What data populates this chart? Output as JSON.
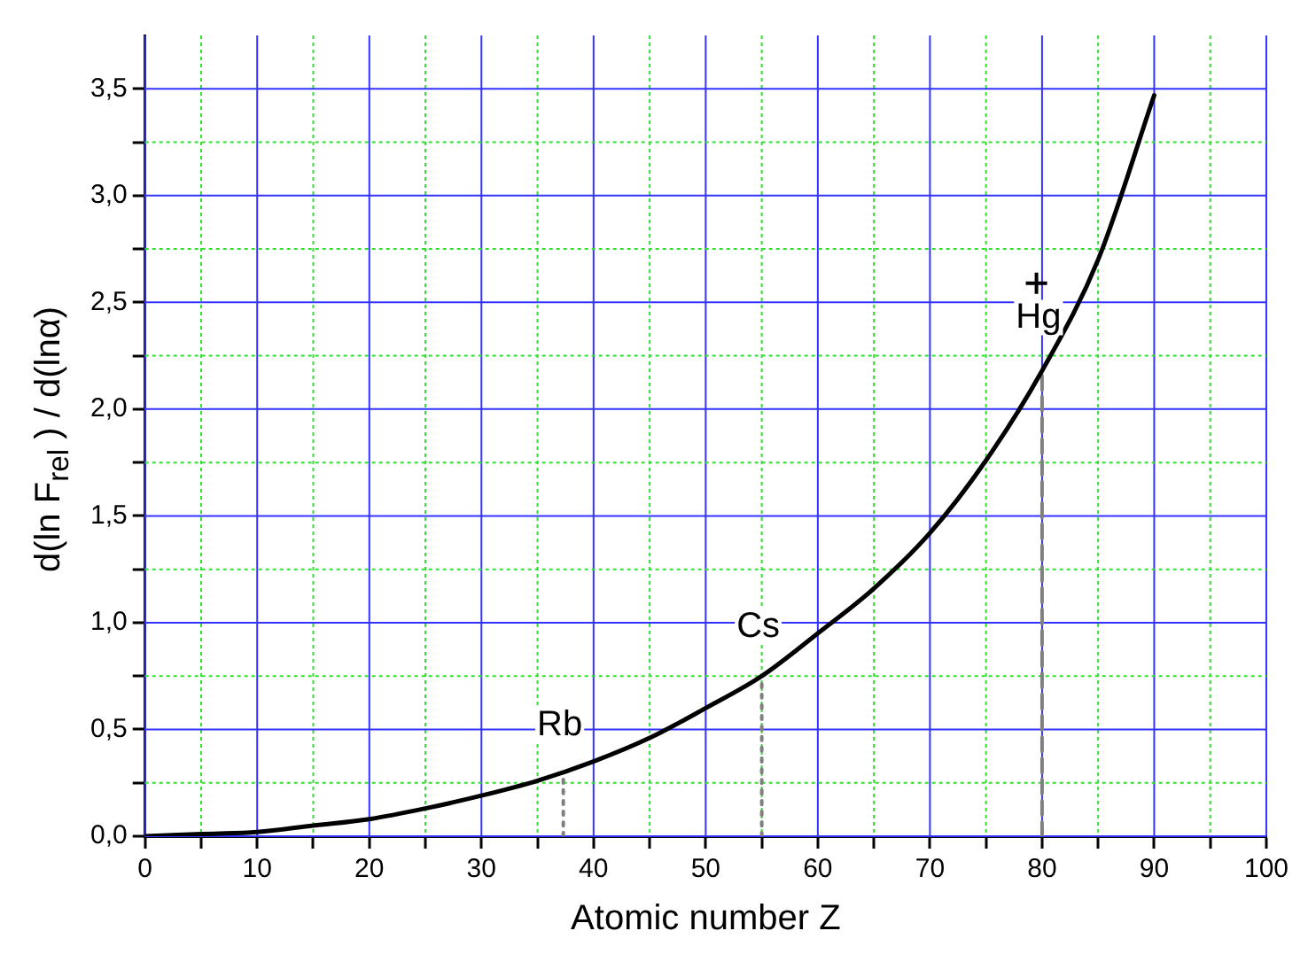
{
  "chart_data": {
    "type": "line",
    "xlabel": "Atomic number Z",
    "ylabel": "d(ln F$_{rel}$ ) / d(lnα)",
    "xlim": [
      0,
      100
    ],
    "ylim": [
      0,
      3.75
    ],
    "xticks": [
      0,
      {
        "value": 5,
        "label": null
      },
      10,
      {
        "value": 15,
        "label": null
      },
      20,
      {
        "value": 25,
        "label": null
      },
      30,
      {
        "value": 35,
        "label": null
      },
      40,
      {
        "value": 45,
        "label": null
      },
      50,
      {
        "value": 55,
        "label": null
      },
      60,
      {
        "value": 65,
        "label": null
      },
      70,
      {
        "value": 75,
        "label": null
      },
      80,
      {
        "value": 85,
        "label": null
      },
      90,
      {
        "value": 95,
        "label": null
      },
      100
    ],
    "yticks": [
      {
        "value": 0,
        "label": "0,0"
      },
      {
        "value": 0.25,
        "label": null
      },
      {
        "value": 0.5,
        "label": "0,5"
      },
      {
        "value": 0.75,
        "label": null
      },
      {
        "value": 1,
        "label": "1,0"
      },
      {
        "value": 1.25,
        "label": null
      },
      {
        "value": 1.5,
        "label": "1,5"
      },
      {
        "value": 1.75,
        "label": null
      },
      {
        "value": 2,
        "label": "2,0"
      },
      {
        "value": 2.25,
        "label": null
      },
      {
        "value": 2.5,
        "label": "2,5"
      },
      {
        "value": 2.75,
        "label": null
      },
      {
        "value": 3,
        "label": "3,0"
      },
      {
        "value": 3.25,
        "label": null
      },
      {
        "value": 3.5,
        "label": "3,5"
      }
    ],
    "grid": true,
    "marker": "none",
    "line_style": "solid",
    "series": [
      {
        "color": "#000000",
        "x": [
          0,
          5,
          10,
          15,
          20,
          25,
          30,
          35,
          40,
          45,
          50,
          55,
          60,
          65,
          70,
          75,
          80,
          85,
          90
        ],
        "values": [
          0,
          0.01,
          0.02,
          0.05,
          0.08,
          0.13,
          0.19,
          0.26,
          0.35,
          0.46,
          0.6,
          0.75,
          0.95,
          1.16,
          1.42,
          1.76,
          2.18,
          2.7,
          3.47
        ]
      },
      {
        "color": "#808080",
        "line_style": "dotted",
        "x": [
          37.3,
          37.3
        ],
        "values": [
          0,
          0.27
        ]
      },
      {
        "color": "#808080",
        "line_style": "dotted",
        "x": [
          55,
          55
        ],
        "values": [
          0,
          0.73
        ]
      },
      {
        "color": "#808080",
        "line_style": "dashed",
        "x": [
          80,
          80
        ],
        "values": [
          0,
          2.18
        ]
      },
      {
        "type": "scatter",
        "color": "#000000",
        "marker": "cross",
        "x": [
          79.5
        ],
        "values": [
          2.59
        ]
      }
    ],
    "annotations": [
      {
        "text": "Rb",
        "x": 37.3,
        "y": 0.27
      },
      {
        "text": "Cs",
        "x": 55,
        "y": 0.73
      },
      {
        "text": "Hg",
        "x": 80,
        "y": 2.18
      }
    ]
  }
}
